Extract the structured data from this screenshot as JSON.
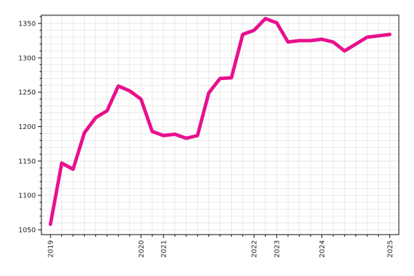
{
  "chart_data": {
    "type": "line",
    "title": "",
    "xlabel": "",
    "ylabel": "",
    "grid": true,
    "legend": "none",
    "x_tick_labels": [
      "2019",
      "2020",
      "2021",
      "2022",
      "2023",
      "2024",
      "2025"
    ],
    "x_tick_positions": [
      0,
      8,
      10,
      18,
      20,
      24,
      30
    ],
    "y_ticks": [
      1050,
      1100,
      1150,
      1200,
      1250,
      1300,
      1350
    ],
    "xlim": [
      -0.8,
      30.8
    ],
    "ylim": [
      1043,
      1362
    ],
    "series": [
      {
        "color": "#e8108e",
        "x": [
          0,
          1,
          2,
          3,
          4,
          5,
          6,
          7,
          8,
          9,
          10,
          11,
          12,
          13,
          14,
          15,
          16,
          17,
          18,
          19,
          20,
          21,
          22,
          23,
          24,
          25,
          26,
          27,
          28,
          29,
          30
        ],
        "y": [
          1058,
          1147,
          1138,
          1191,
          1213,
          1223,
          1259,
          1252,
          1240,
          1193,
          1187,
          1189,
          1183,
          1187,
          1249,
          1270,
          1271,
          1334,
          1340,
          1357,
          1351,
          1323,
          1325,
          1325,
          1327,
          1323,
          1310,
          1320,
          1330,
          1332,
          1334
        ]
      }
    ]
  }
}
